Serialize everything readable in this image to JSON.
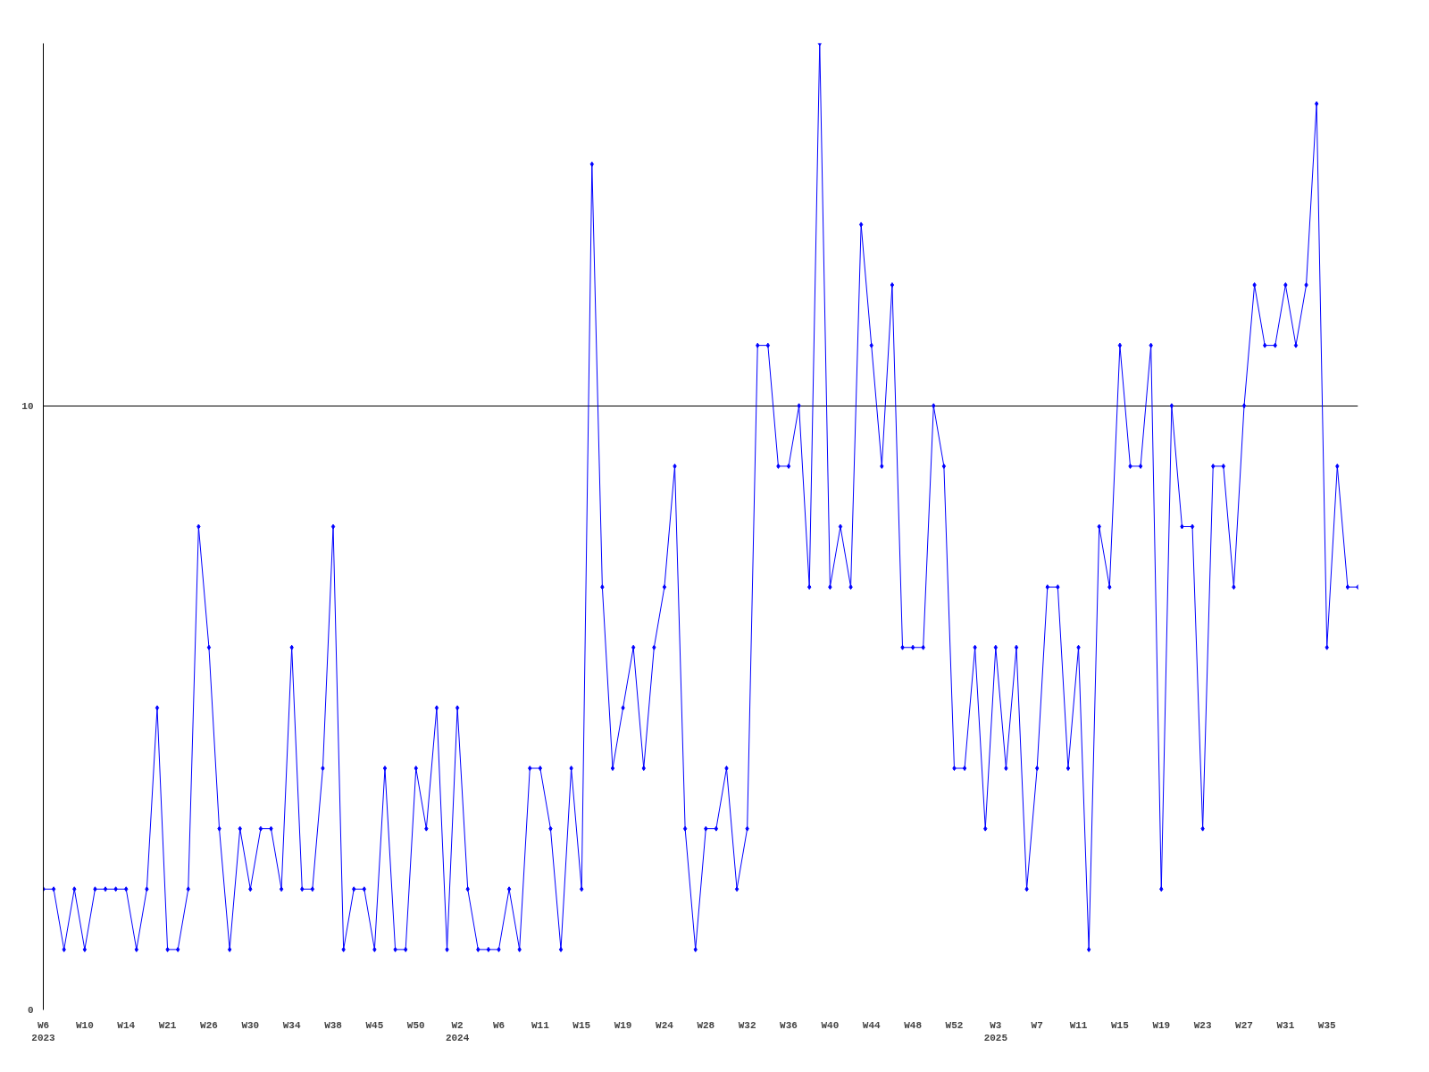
{
  "chart_data": {
    "type": "line",
    "categories": [
      "W6\n2023",
      null,
      null,
      null,
      "W10",
      null,
      null,
      null,
      "W14",
      null,
      null,
      null,
      "W21",
      null,
      null,
      null,
      "W26",
      null,
      null,
      null,
      "W30",
      null,
      null,
      null,
      "W34",
      null,
      null,
      null,
      "W38",
      null,
      null,
      null,
      "W45",
      null,
      null,
      null,
      "W50",
      null,
      null,
      null,
      "W2\n2024",
      null,
      null,
      null,
      "W6",
      null,
      null,
      null,
      "W11",
      null,
      null,
      null,
      "W15",
      null,
      null,
      null,
      "W19",
      null,
      null,
      null,
      "W24",
      null,
      null,
      null,
      "W28",
      null,
      null,
      null,
      "W32",
      null,
      null,
      null,
      "W36",
      null,
      null,
      null,
      "W40",
      null,
      null,
      null,
      "W44",
      null,
      null,
      null,
      "W48",
      null,
      null,
      null,
      "W52",
      null,
      null,
      null,
      "W3\n2025",
      null,
      null,
      null,
      "W7",
      null,
      null,
      null,
      "W11",
      null,
      null,
      null,
      "W15",
      null,
      null,
      null,
      "W19",
      null,
      null,
      null,
      "W23",
      null,
      null,
      null,
      "W27",
      null,
      null,
      null,
      "W31",
      null,
      null,
      null,
      "W35",
      null,
      null,
      null
    ],
    "series": [
      {
        "color": "#0000ff",
        "values": [
          2,
          2,
          1,
          2,
          1,
          2,
          2,
          2,
          2,
          1,
          2,
          5,
          1,
          1,
          2,
          8,
          6,
          3,
          1,
          3,
          2,
          3,
          3,
          2,
          6,
          2,
          2,
          4,
          8,
          1,
          2,
          2,
          1,
          4,
          1,
          1,
          4,
          3,
          5,
          1,
          5,
          2,
          1,
          1,
          1,
          2,
          1,
          4,
          4,
          3,
          1,
          4,
          2,
          14,
          7,
          4,
          5,
          6,
          4,
          6,
          7,
          9,
          3,
          1,
          3,
          3,
          4,
          2,
          3,
          11,
          11,
          9,
          9,
          10,
          7,
          16,
          7,
          8,
          7,
          13,
          11,
          9,
          12,
          6,
          6,
          6,
          10,
          9,
          4,
          4,
          6,
          3,
          6,
          4,
          6,
          2,
          4,
          7,
          7,
          4,
          6,
          1,
          8,
          7,
          11,
          9,
          9,
          11,
          2,
          10,
          8,
          8,
          3,
          9,
          9,
          7,
          10,
          12,
          11,
          11,
          12,
          11,
          12,
          15,
          6,
          9,
          7,
          7
        ]
      }
    ],
    "ylim": [
      0,
      16
    ],
    "yticks": [
      0,
      10
    ],
    "grid": "y",
    "marker": "diamond",
    "line_style": "solid"
  }
}
